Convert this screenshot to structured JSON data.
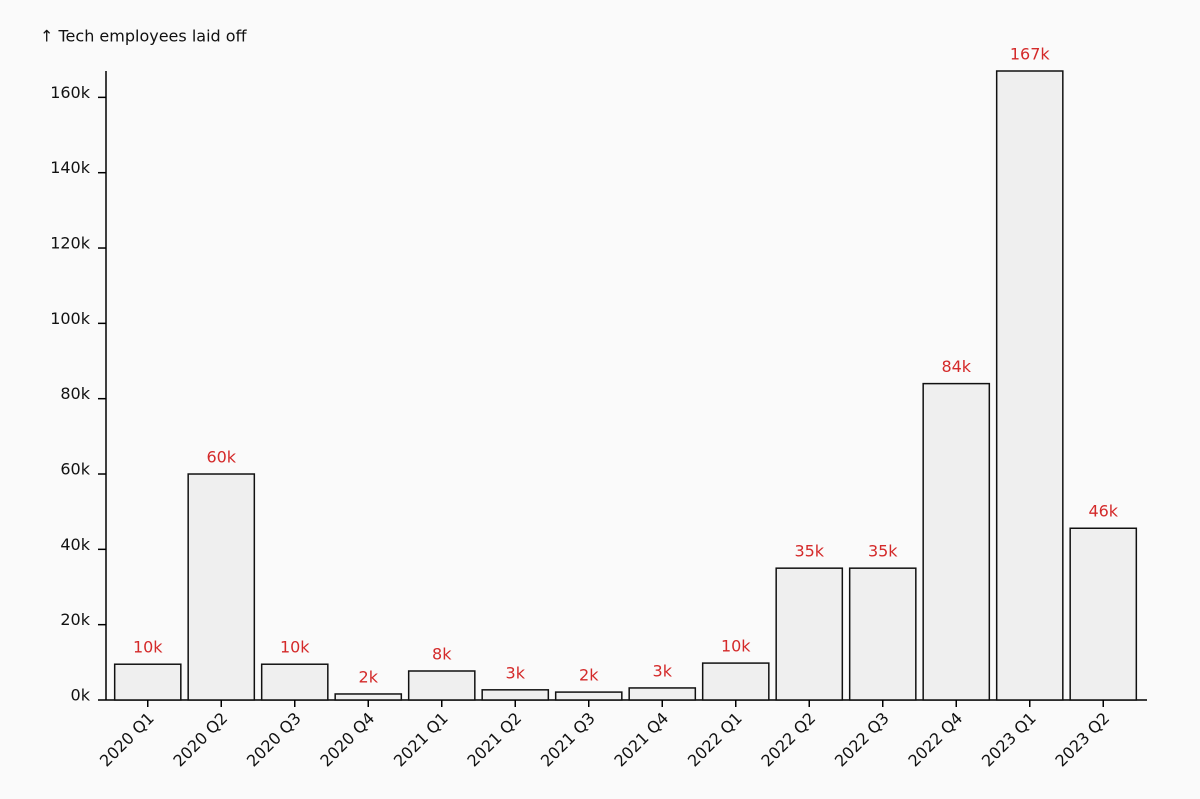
{
  "chart_data": {
    "type": "bar",
    "title": "↑ Tech employees laid off",
    "categories": [
      "2020 Q1",
      "2020 Q2",
      "2020 Q3",
      "2020 Q4",
      "2021 Q1",
      "2021 Q2",
      "2021 Q3",
      "2021 Q4",
      "2022 Q1",
      "2022 Q2",
      "2022 Q3",
      "2022 Q4",
      "2023 Q1",
      "2023 Q2"
    ],
    "values": [
      9500,
      60000,
      9500,
      1600,
      7700,
      2700,
      2100,
      3200,
      9800,
      35000,
      35000,
      84000,
      167000,
      45600
    ],
    "value_labels": [
      "10k",
      "60k",
      "10k",
      "2k",
      "8k",
      "3k",
      "2k",
      "3k",
      "10k",
      "35k",
      "35k",
      "84k",
      "167k",
      "46k"
    ],
    "color": "#efefef",
    "label_color": "#d42a2a",
    "ylim": [
      0,
      167000
    ],
    "yticks": [
      {
        "value": 0,
        "label": "0k"
      },
      {
        "value": 20000,
        "label": "20k"
      },
      {
        "value": 40000,
        "label": "40k"
      },
      {
        "value": 60000,
        "label": "60k"
      },
      {
        "value": 80000,
        "label": "80k"
      },
      {
        "value": 100000,
        "label": "100k"
      },
      {
        "value": 120000,
        "label": "120k"
      },
      {
        "value": 140000,
        "label": "140k"
      },
      {
        "value": 160000,
        "label": "160k"
      }
    ],
    "grid": false
  }
}
